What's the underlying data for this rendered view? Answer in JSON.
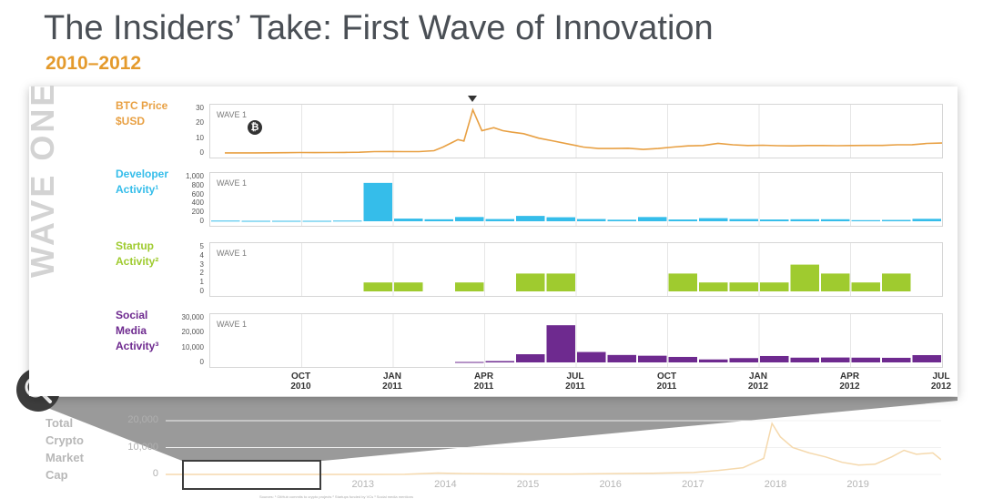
{
  "header": {
    "title": "The Insiders’ Take: First Wave of Innovation",
    "subtitle": "2010–2012"
  },
  "side_label": "WAVE ONE",
  "wave_tag": "WAVE 1",
  "btc_symbol": "₿",
  "colors": {
    "btc": "#e8a043",
    "dev": "#35bdea",
    "startup": "#9fcb2f",
    "social": "#6e2a8f",
    "accent": "#e49a2c"
  },
  "x_ticks": [
    {
      "label1": "OCT",
      "label2": "2010"
    },
    {
      "label1": "JAN",
      "label2": "2011"
    },
    {
      "label1": "APR",
      "label2": "2011"
    },
    {
      "label1": "JUL",
      "label2": "2011"
    },
    {
      "label1": "OCT",
      "label2": "2011"
    },
    {
      "label1": "JAN",
      "label2": "2012"
    },
    {
      "label1": "APR",
      "label2": "2012"
    },
    {
      "label1": "JUL",
      "label2": "2012"
    }
  ],
  "chart_data": [
    {
      "type": "line",
      "name": "btc-price",
      "label_lines": [
        "BTC Price",
        "$USD"
      ],
      "y_ticks": [
        "30",
        "20",
        "10",
        "0"
      ],
      "ylim": [
        0,
        30
      ],
      "x_months": [
        0,
        0.5,
        1,
        1.5,
        2,
        2.5,
        3,
        3.5,
        4,
        4.5,
        5,
        5.5,
        6,
        6.5,
        7,
        7.3,
        7.6,
        7.8,
        8,
        8.3,
        8.6,
        9,
        9.3,
        9.6,
        10,
        10.5,
        11,
        11.5,
        12,
        12.5,
        13,
        13.5,
        14,
        14.5,
        15,
        15.5,
        16,
        16.5,
        17,
        17.5,
        18,
        18.5,
        19,
        19.5,
        20,
        20.5,
        21,
        21.5,
        22,
        22.5,
        23,
        23.5,
        24
      ],
      "values": [
        0.06,
        0.07,
        0.06,
        0.1,
        0.2,
        0.3,
        0.25,
        0.3,
        0.35,
        0.5,
        0.9,
        1.0,
        0.9,
        0.9,
        1.5,
        4,
        7,
        9,
        8,
        29,
        15,
        17,
        15,
        14,
        13,
        10,
        8,
        6,
        4,
        3,
        3,
        3.2,
        2.4,
        3,
        4,
        4.8,
        5,
        6.5,
        5.5,
        5,
        5.2,
        4.9,
        4.8,
        5,
        5,
        4.9,
        5,
        5.1,
        5.1,
        5.5,
        5.6,
        6.4,
        6.7
      ],
      "peak_marker_month": 8.3
    },
    {
      "type": "bar",
      "name": "developer-activity",
      "label_lines": [
        "Developer",
        "Activity¹"
      ],
      "y_ticks": [
        "1,000",
        "800",
        "600",
        "400",
        "200",
        "0"
      ],
      "ylim": [
        0,
        1000
      ],
      "values": [
        15,
        10,
        10,
        10,
        15,
        860,
        60,
        45,
        95,
        50,
        120,
        90,
        50,
        35,
        95,
        40,
        70,
        50,
        40,
        45,
        45,
        25,
        30,
        55
      ]
    },
    {
      "type": "bar",
      "name": "startup-activity",
      "label_lines": [
        "Startup",
        "Activity²"
      ],
      "y_ticks": [
        "5",
        "4",
        "3",
        "2",
        "1",
        "0"
      ],
      "ylim": [
        0,
        5
      ],
      "values": [
        0,
        0,
        0,
        0,
        0,
        1,
        1,
        0,
        1,
        0,
        2,
        2,
        0,
        0,
        0,
        2,
        1,
        1,
        1,
        3,
        2,
        1,
        2,
        0
      ]
    },
    {
      "type": "bar",
      "name": "social-media-activity",
      "label_lines": [
        "Social",
        "Media",
        "Activity³"
      ],
      "y_ticks": [
        "30,000",
        "20,000",
        "10,000",
        "0"
      ],
      "ylim": [
        0,
        30000
      ],
      "values": [
        0,
        0,
        0,
        0,
        0,
        0,
        0,
        0,
        300,
        900,
        5500,
        25000,
        7000,
        5000,
        4500,
        3700,
        2000,
        2900,
        4300,
        3200,
        3300,
        3200,
        3100,
        4900
      ]
    },
    {
      "type": "area",
      "name": "total-crypto-market-cap",
      "label_lines": [
        "Total",
        "Crypto",
        "Market",
        "Cap"
      ],
      "y_ticks": [
        "20,000",
        "10,000",
        "0"
      ],
      "ylim": [
        0,
        20000
      ],
      "x_labels": [
        "2013",
        "2014",
        "2015",
        "2016",
        "2017",
        "2018",
        "2019"
      ],
      "x_years": [
        2010.6,
        2011,
        2011.5,
        2012,
        2012.5,
        2013,
        2013.5,
        2013.9,
        2014.2,
        2014.6,
        2015,
        2015.5,
        2016,
        2016.5,
        2017,
        2017.3,
        2017.6,
        2017.85,
        2017.95,
        2018.05,
        2018.2,
        2018.4,
        2018.6,
        2018.8,
        2019,
        2019.2,
        2019.4,
        2019.55,
        2019.7,
        2019.9,
        2020.0
      ],
      "values": [
        0,
        0,
        0,
        0,
        0,
        0,
        50,
        500,
        300,
        200,
        150,
        150,
        300,
        400,
        700,
        1500,
        2500,
        6000,
        19000,
        14000,
        10000,
        8000,
        6500,
        4500,
        3500,
        3800,
        6500,
        9000,
        7500,
        8000,
        5500
      ]
    }
  ],
  "footnote": "Sources: ¹ GitHub commits to crypto projects  ² Startups funded by VCs  ³ Social media mentions"
}
